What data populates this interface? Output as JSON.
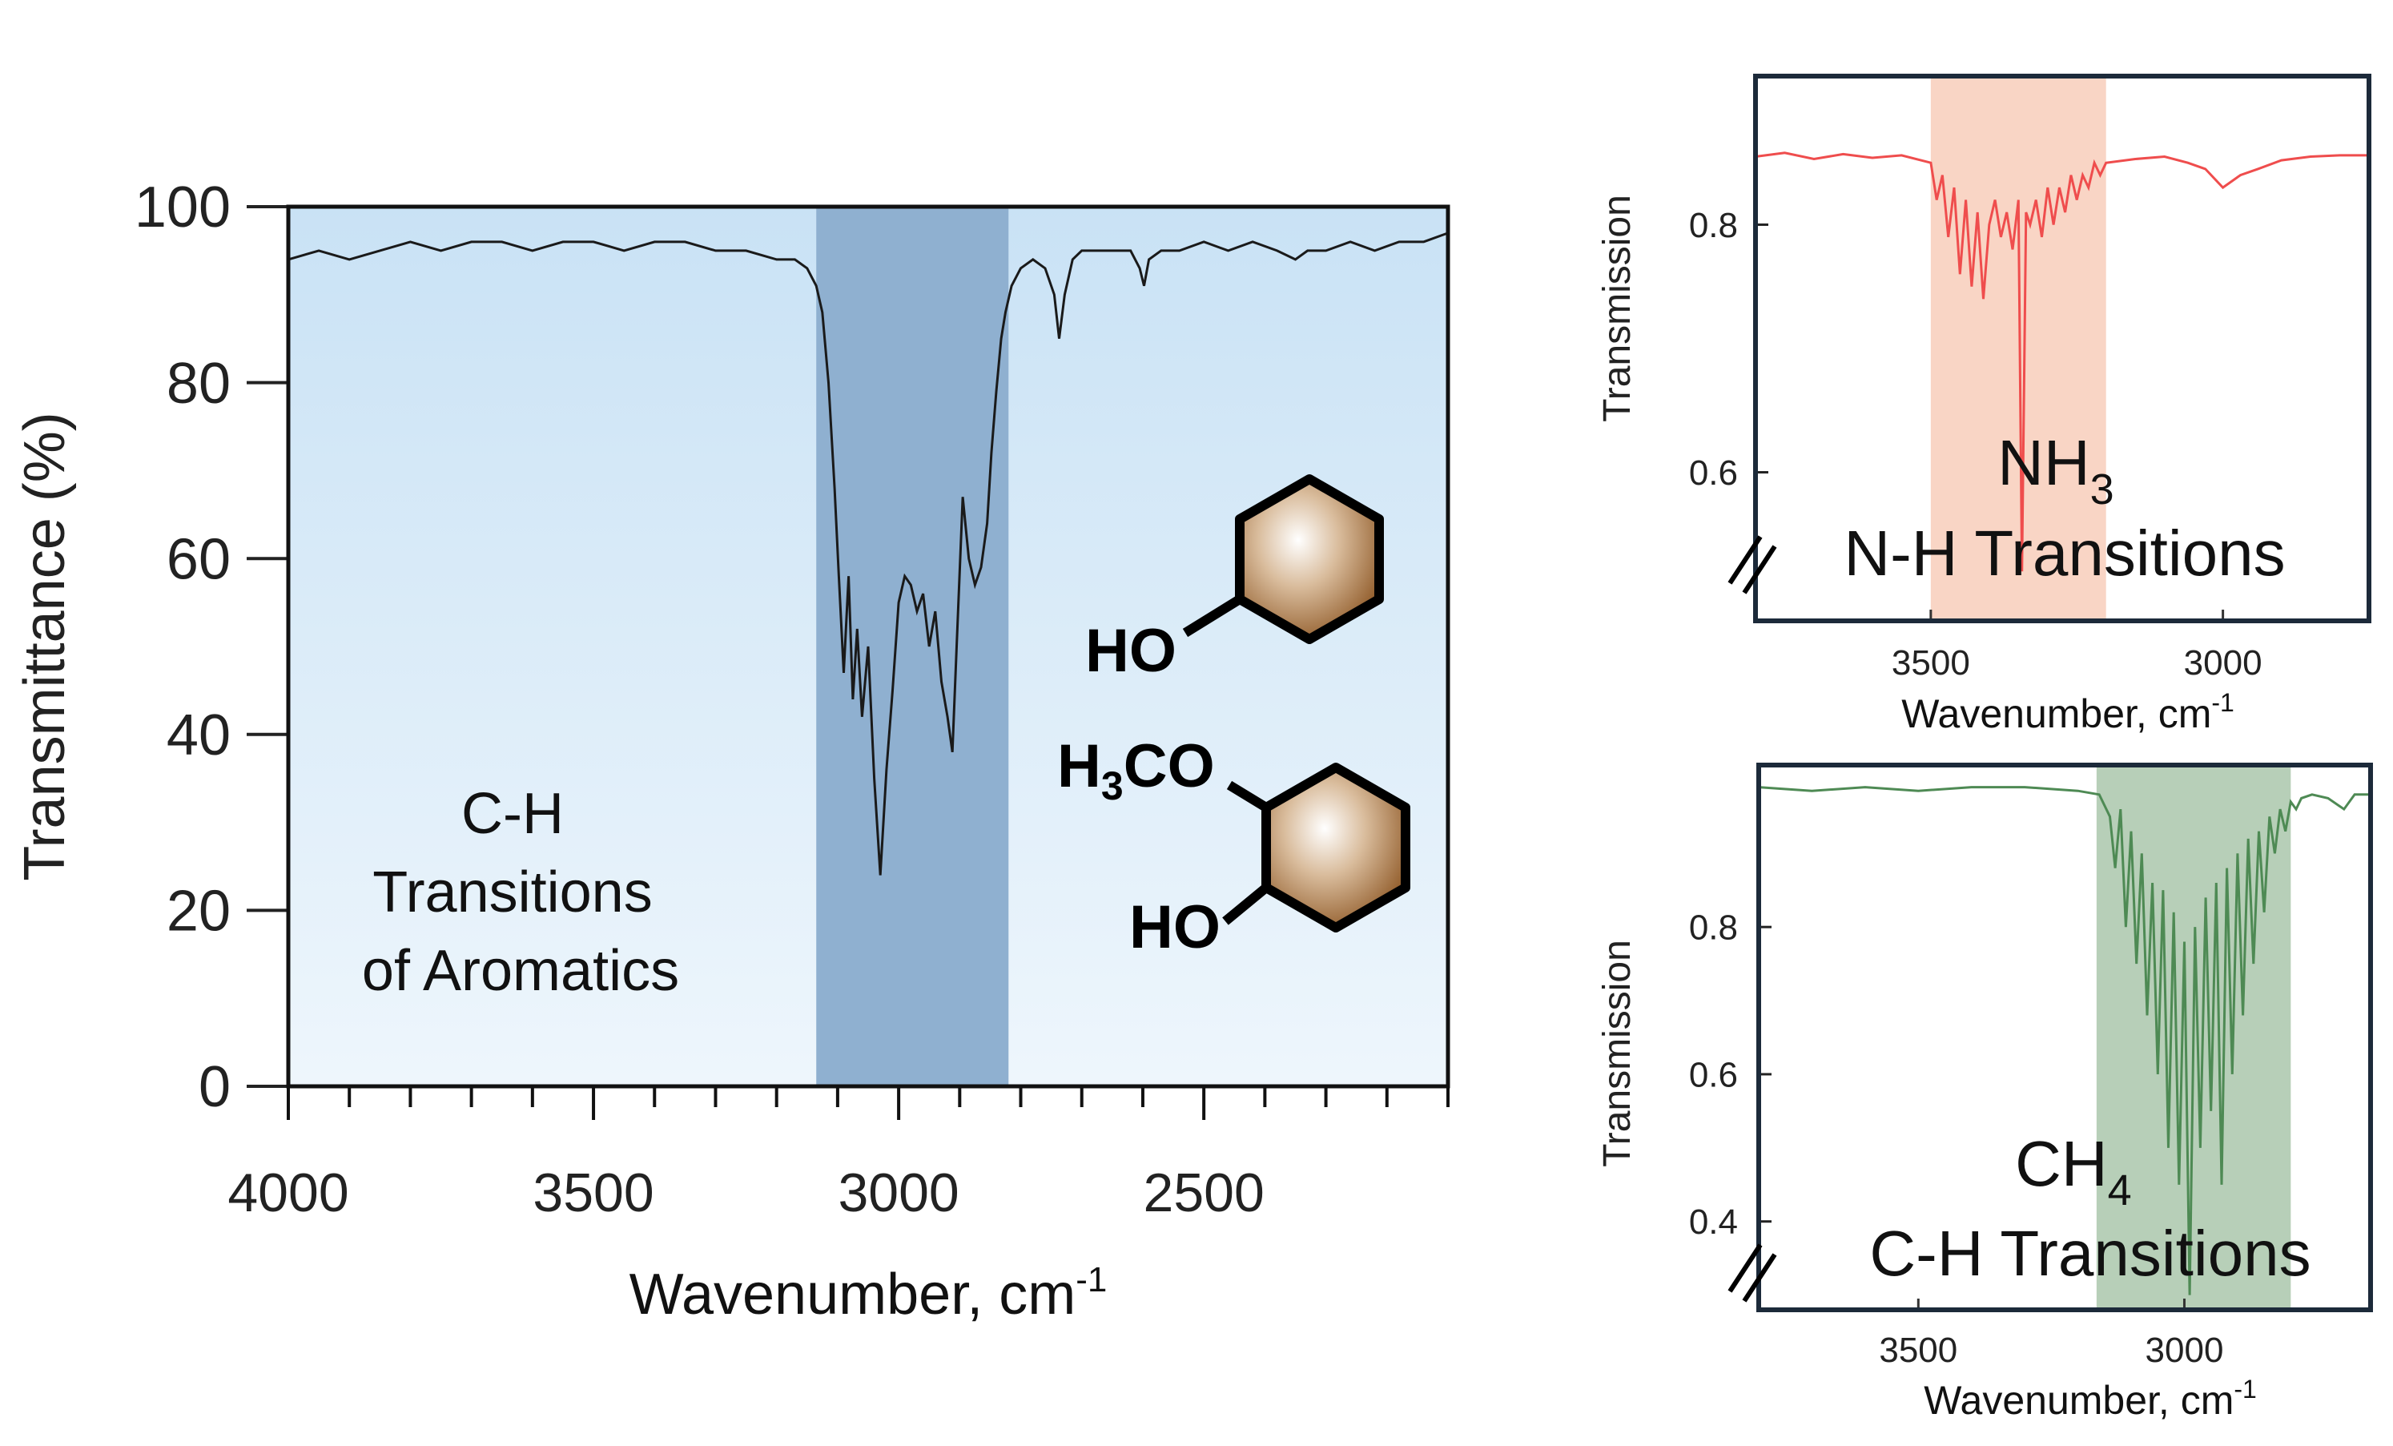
{
  "chart_data": [
    {
      "type": "line",
      "xlabel": "Wavenumber, cm",
      "xlabel_sup": "-1",
      "ylabel": "Transmittance (%)",
      "xlim": [
        4000,
        2100
      ],
      "ylim": [
        0,
        100
      ],
      "x_ticks": [
        4000,
        3500,
        3000,
        2500
      ],
      "y_ticks": [
        0,
        20,
        40,
        60,
        80,
        100
      ],
      "highlight_band": [
        3135,
        2820
      ],
      "annotation_lines": [
        "C-H",
        "Transitions",
        "of Aromatics"
      ],
      "molecule_labels": {
        "phenol_ho": "HO",
        "guaiacol_h": "H",
        "guaiacol_sub": "3",
        "guaiacol_co": "CO",
        "guaiacol_ho": "HO"
      },
      "colors": {
        "line": "#1a1a1a",
        "band": "#8fb0d0",
        "background": "#dcecf8",
        "ring": "#a8784a"
      },
      "series": [
        {
          "x": [
            4000,
            3950,
            3900,
            3850,
            3800,
            3750,
            3700,
            3650,
            3600,
            3550,
            3500,
            3450,
            3400,
            3350,
            3300,
            3250,
            3200,
            3170,
            3150,
            3135,
            3125,
            3115,
            3105,
            3098,
            3090,
            3082,
            3075,
            3068,
            3060,
            3050,
            3040,
            3030,
            3020,
            3010,
            3000,
            2990,
            2980,
            2970,
            2960,
            2950,
            2940,
            2930,
            2920,
            2912,
            2905,
            2895,
            2885,
            2875,
            2865,
            2855,
            2848,
            2840,
            2832,
            2825,
            2815,
            2800,
            2780,
            2760,
            2745,
            2737,
            2728,
            2715,
            2700,
            2680,
            2650,
            2620,
            2605,
            2598,
            2590,
            2570,
            2540,
            2500,
            2460,
            2420,
            2380,
            2350,
            2330,
            2300,
            2260,
            2220,
            2180,
            2140,
            2100
          ],
          "y": [
            94,
            95,
            94,
            95,
            96,
            95,
            96,
            96,
            95,
            96,
            96,
            95,
            96,
            96,
            95,
            95,
            94,
            94,
            93,
            91,
            88,
            80,
            68,
            58,
            47,
            58,
            44,
            52,
            42,
            50,
            35,
            24,
            36,
            45,
            55,
            58,
            57,
            54,
            56,
            50,
            54,
            46,
            42,
            38,
            50,
            67,
            60,
            57,
            59,
            64,
            72,
            79,
            85,
            88,
            91,
            93,
            94,
            93,
            90,
            85,
            90,
            94,
            95,
            95,
            95,
            95,
            93,
            91,
            94,
            95,
            95,
            96,
            95,
            96,
            95,
            94,
            95,
            95,
            96,
            95,
            96,
            96,
            97
          ]
        }
      ]
    },
    {
      "type": "line",
      "xlabel": "Wavenumber, cm",
      "xlabel_sup": "-1",
      "ylabel": "Transmission",
      "xlim": [
        3800,
        2750
      ],
      "ylim": [
        0.48,
        0.92
      ],
      "x_ticks": [
        3500,
        3000
      ],
      "y_ticks": [
        0.6,
        0.8
      ],
      "highlight_band": [
        3500,
        3200
      ],
      "annotation_lines": [
        "NH",
        "N-H Transitions"
      ],
      "annotation_sub": "3",
      "colors": {
        "line": "#ef4d4d",
        "band": "#f9d5c5"
      },
      "series": [
        {
          "x": [
            3800,
            3750,
            3700,
            3650,
            3600,
            3550,
            3500,
            3490,
            3480,
            3470,
            3460,
            3450,
            3440,
            3430,
            3420,
            3410,
            3400,
            3390,
            3380,
            3370,
            3360,
            3350,
            3344,
            3337,
            3330,
            3320,
            3310,
            3300,
            3290,
            3280,
            3270,
            3260,
            3250,
            3240,
            3230,
            3220,
            3210,
            3200,
            3150,
            3100,
            3060,
            3030,
            3000,
            2970,
            2940,
            2900,
            2850,
            2800,
            2750
          ],
          "y": [
            0.855,
            0.858,
            0.853,
            0.857,
            0.854,
            0.856,
            0.85,
            0.82,
            0.84,
            0.79,
            0.83,
            0.76,
            0.82,
            0.75,
            0.81,
            0.74,
            0.8,
            0.82,
            0.79,
            0.81,
            0.78,
            0.82,
            0.52,
            0.81,
            0.8,
            0.82,
            0.79,
            0.83,
            0.8,
            0.83,
            0.81,
            0.84,
            0.82,
            0.84,
            0.83,
            0.85,
            0.84,
            0.85,
            0.853,
            0.855,
            0.85,
            0.845,
            0.83,
            0.84,
            0.845,
            0.852,
            0.855,
            0.856,
            0.856
          ]
        }
      ]
    },
    {
      "type": "line",
      "xlabel": "Wavenumber, cm",
      "xlabel_sup": "-1",
      "ylabel": "Transmission",
      "xlim": [
        3800,
        2650
      ],
      "ylim": [
        0.28,
        1.02
      ],
      "x_ticks": [
        3500,
        3000
      ],
      "y_ticks": [
        0.4,
        0.6,
        0.8
      ],
      "highlight_band": [
        3165,
        2800
      ],
      "annotation_lines": [
        "CH",
        "C-H Transitions"
      ],
      "annotation_sub": "4",
      "colors": {
        "line": "#4e8a54",
        "band": "#b7cfb8"
      },
      "series": [
        {
          "x": [
            3800,
            3700,
            3600,
            3500,
            3400,
            3300,
            3200,
            3160,
            3140,
            3130,
            3120,
            3110,
            3100,
            3090,
            3080,
            3070,
            3060,
            3050,
            3040,
            3030,
            3020,
            3010,
            3000,
            2990,
            2980,
            2970,
            2960,
            2950,
            2940,
            2930,
            2920,
            2910,
            2900,
            2890,
            2880,
            2870,
            2860,
            2850,
            2840,
            2830,
            2820,
            2810,
            2800,
            2790,
            2780,
            2760,
            2730,
            2700,
            2680,
            2650
          ],
          "y": [
            0.99,
            0.985,
            0.99,
            0.985,
            0.99,
            0.99,
            0.985,
            0.98,
            0.95,
            0.88,
            0.96,
            0.8,
            0.93,
            0.75,
            0.9,
            0.68,
            0.86,
            0.6,
            0.85,
            0.5,
            0.82,
            0.45,
            0.78,
            0.3,
            0.8,
            0.5,
            0.84,
            0.55,
            0.86,
            0.45,
            0.88,
            0.6,
            0.9,
            0.68,
            0.92,
            0.75,
            0.93,
            0.82,
            0.95,
            0.9,
            0.96,
            0.93,
            0.97,
            0.96,
            0.975,
            0.98,
            0.975,
            0.96,
            0.98,
            0.98
          ]
        }
      ]
    }
  ]
}
